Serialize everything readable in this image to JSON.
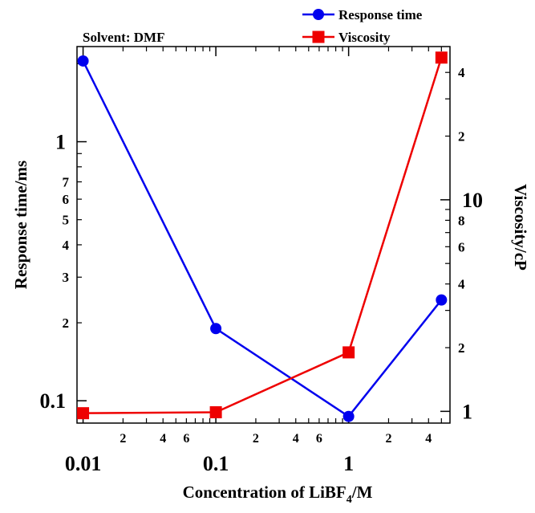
{
  "chart_data": {
    "type": "line",
    "title": "",
    "annotation": "Solvent: DMF",
    "xlabel": {
      "main": "Concentration of LiBF",
      "sub": "4",
      "unit": "/M"
    },
    "ylabel_left": "Response time/ms",
    "ylabel_right": "Viscosity/cP",
    "x_scale": "log",
    "y_left_scale": "log",
    "y_right_scale": "log",
    "xlim": [
      0.009,
      5.8
    ],
    "ylim_left": [
      0.082,
      2.33
    ],
    "ylim_right": [
      0.88,
      53
    ],
    "x_ticks": {
      "major": [
        {
          "v": 0.01,
          "label": "0.01"
        },
        {
          "v": 0.1,
          "label": "0.1"
        },
        {
          "v": 1,
          "label": "1"
        }
      ],
      "minor": [
        {
          "v": 0.02,
          "label": "2"
        },
        {
          "v": 0.03,
          "label": ""
        },
        {
          "v": 0.04,
          "label": "4"
        },
        {
          "v": 0.05,
          "label": ""
        },
        {
          "v": 0.06,
          "label": "6"
        },
        {
          "v": 0.07,
          "label": ""
        },
        {
          "v": 0.08,
          "label": ""
        },
        {
          "v": 0.09,
          "label": ""
        },
        {
          "v": 0.2,
          "label": "2"
        },
        {
          "v": 0.3,
          "label": ""
        },
        {
          "v": 0.4,
          "label": "4"
        },
        {
          "v": 0.5,
          "label": ""
        },
        {
          "v": 0.6,
          "label": "6"
        },
        {
          "v": 0.7,
          "label": ""
        },
        {
          "v": 0.8,
          "label": ""
        },
        {
          "v": 0.9,
          "label": ""
        },
        {
          "v": 2,
          "label": "2"
        },
        {
          "v": 3,
          "label": ""
        },
        {
          "v": 4,
          "label": "4"
        },
        {
          "v": 5,
          "label": ""
        }
      ]
    },
    "y_left_ticks": {
      "major": [
        {
          "v": 0.1,
          "label": "0.1"
        },
        {
          "v": 1,
          "label": "1"
        }
      ],
      "minor": [
        {
          "v": 0.2,
          "label": "2"
        },
        {
          "v": 0.3,
          "label": "3"
        },
        {
          "v": 0.4,
          "label": "4"
        },
        {
          "v": 0.5,
          "label": "5"
        },
        {
          "v": 0.6,
          "label": "6"
        },
        {
          "v": 0.7,
          "label": "7"
        },
        {
          "v": 0.8,
          "label": ""
        },
        {
          "v": 0.9,
          "label": ""
        },
        {
          "v": 2,
          "label": ""
        }
      ]
    },
    "y_right_ticks": {
      "major": [
        {
          "v": 1,
          "label": "1"
        },
        {
          "v": 10,
          "label": "10"
        }
      ],
      "minor": [
        {
          "v": 2,
          "label": "2"
        },
        {
          "v": 3,
          "label": ""
        },
        {
          "v": 4,
          "label": "4"
        },
        {
          "v": 5,
          "label": ""
        },
        {
          "v": 6,
          "label": "6"
        },
        {
          "v": 7,
          "label": ""
        },
        {
          "v": 8,
          "label": "8"
        },
        {
          "v": 9,
          "label": ""
        },
        {
          "v": 20,
          "label": "2"
        },
        {
          "v": 30,
          "label": ""
        },
        {
          "v": 40,
          "label": "4"
        }
      ]
    },
    "series": [
      {
        "name": "Response time",
        "axis": "left",
        "color": "#0000ee",
        "marker": "circle",
        "x": [
          0.01,
          0.1,
          1,
          5
        ],
        "y": [
          2.05,
          0.19,
          0.087,
          0.245
        ]
      },
      {
        "name": "Viscosity",
        "axis": "right",
        "color": "#ee0000",
        "marker": "square",
        "x": [
          0.01,
          0.1,
          1,
          5
        ],
        "y": [
          0.98,
          0.99,
          1.9,
          47
        ]
      }
    ],
    "legend_position": "top-right",
    "grid": false
  }
}
